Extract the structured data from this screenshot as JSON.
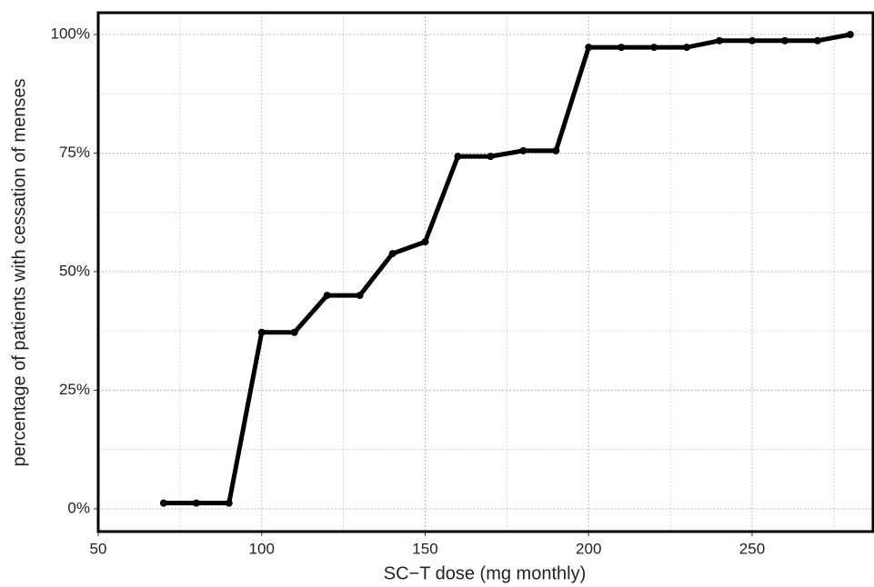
{
  "chart_data": {
    "type": "line",
    "x_label": "SC−T dose (mg monthly)",
    "y_label": "percentage of patients with cessation of menses",
    "x": [
      70,
      80,
      90,
      100,
      110,
      120,
      130,
      140,
      150,
      160,
      170,
      180,
      190,
      200,
      210,
      220,
      230,
      240,
      250,
      260,
      270,
      280
    ],
    "series": [
      {
        "color": "#000000",
        "values": [
          1.2,
          1.2,
          1.2,
          37.2,
          37.2,
          45.0,
          45.0,
          53.8,
          56.3,
          74.3,
          74.3,
          75.5,
          75.5,
          97.3,
          97.3,
          97.3,
          97.3,
          98.7,
          98.7,
          98.7,
          98.7,
          100
        ]
      }
    ],
    "xlim": [
      50,
      287
    ],
    "xticks": [
      50,
      100,
      150,
      200,
      250
    ],
    "x_minor_grid": [
      75,
      125,
      175,
      225,
      275
    ],
    "ylim": [
      -4.8,
      104.6
    ],
    "yticks": [
      {
        "value": 0,
        "label": "0%"
      },
      {
        "value": 25,
        "label": "25%"
      },
      {
        "value": 50,
        "label": "50%"
      },
      {
        "value": 75,
        "label": "75%"
      },
      {
        "value": 100,
        "label": "100%"
      }
    ],
    "y_minor_grid": [
      12.5,
      37.5,
      62.5,
      87.5
    ],
    "grid": true
  }
}
